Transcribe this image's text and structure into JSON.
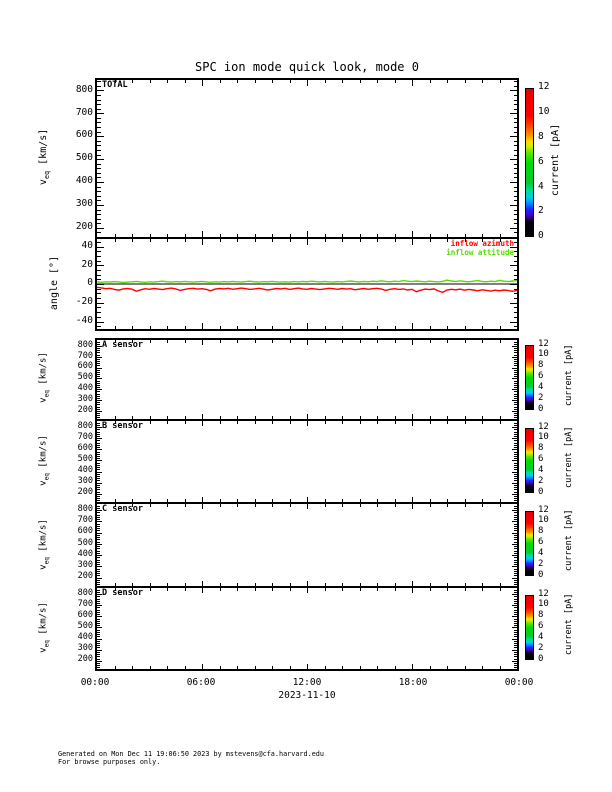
{
  "page": {
    "title": "SPC ion mode quick look, mode 0",
    "date_label": "2023-11-10",
    "footer_line1": "Generated on Mon Dec 11 19:06:50 2023 by mstevens@cfa.harvard.edu",
    "footer_line2": "For browse purposes only."
  },
  "labels": {
    "veq_base": "v",
    "veq_sub": "eq",
    "veq_units": " [km/s]",
    "angle": "angle [°]"
  },
  "x_axis": {
    "labels": [
      "00:00",
      "06:00",
      "12:00",
      "18:00",
      "00:00"
    ],
    "hours": 24,
    "major": [
      6,
      12,
      18
    ],
    "minor_step": 1
  },
  "colorbar": {
    "label": "current [pA]",
    "min": 0,
    "max": 12,
    "ticks": [
      0,
      2,
      4,
      6,
      8,
      10,
      12
    ],
    "stops": [
      {
        "p": 0.0,
        "c": "#000000"
      },
      {
        "p": 0.1,
        "c": "#0a0014"
      },
      {
        "p": 0.14,
        "c": "#4400c8"
      },
      {
        "p": 0.18,
        "c": "#2222ff"
      },
      {
        "p": 0.22,
        "c": "#0088ff"
      },
      {
        "p": 0.26,
        "c": "#00ccee"
      },
      {
        "p": 0.31,
        "c": "#00dd99"
      },
      {
        "p": 0.36,
        "c": "#00cc33"
      },
      {
        "p": 0.5,
        "c": "#00dd00"
      },
      {
        "p": 0.57,
        "c": "#66e600"
      },
      {
        "p": 0.61,
        "c": "#ccee00"
      },
      {
        "p": 0.64,
        "c": "#ffdd00"
      },
      {
        "p": 0.68,
        "c": "#ff9900"
      },
      {
        "p": 0.75,
        "c": "#ff4400"
      },
      {
        "p": 0.82,
        "c": "#ff0000"
      },
      {
        "p": 1.0,
        "c": "#e60000"
      }
    ]
  },
  "panels": [
    {
      "label": "TOTAL",
      "ylim": [
        160,
        845
      ],
      "yticks": [
        800,
        700,
        600,
        500,
        400,
        300,
        200
      ],
      "yminor": 20,
      "tick_fs": 9.5,
      "has_colorbar": true
    },
    {
      "label": "",
      "ylim": [
        -48,
        48
      ],
      "yticks": [
        40,
        20,
        0,
        -20,
        -40
      ],
      "yminor": 5,
      "tick_fs": 9.5,
      "zero_line": true
    },
    {
      "label": "A sensor",
      "ylim": [
        125,
        855
      ],
      "yticks": [
        800,
        700,
        600,
        500,
        400,
        300,
        200
      ],
      "yminor": 20,
      "tick_fs": 8.5,
      "has_colorbar": true
    },
    {
      "label": "B sensor",
      "ylim": [
        125,
        855
      ],
      "yticks": [
        800,
        700,
        600,
        500,
        400,
        300,
        200
      ],
      "yminor": 20,
      "tick_fs": 8.5,
      "has_colorbar": true
    },
    {
      "label": "C sensor",
      "ylim": [
        125,
        855
      ],
      "yticks": [
        800,
        700,
        600,
        500,
        400,
        300,
        200
      ],
      "yminor": 20,
      "tick_fs": 8.5,
      "has_colorbar": true
    },
    {
      "label": "D sensor",
      "ylim": [
        125,
        855
      ],
      "yticks": [
        800,
        700,
        600,
        500,
        400,
        300,
        200
      ],
      "yminor": 20,
      "tick_fs": 8.5,
      "has_colorbar": true
    }
  ],
  "angle_panel": {
    "legend": [
      {
        "label": "inflow azimuth",
        "color": "#ff0000"
      },
      {
        "label": "inflow attitude",
        "color": "#55dd00"
      }
    ]
  },
  "chart_data": [
    {
      "type": "heatmap",
      "panel": "TOTAL",
      "ylabel": "v_eq [km/s]",
      "ylim": [
        160,
        845
      ],
      "x_range_hours": [
        0,
        24
      ],
      "x_tick_labels": [
        "00:00",
        "06:00",
        "12:00",
        "18:00",
        "00:00"
      ],
      "colorbar": {
        "label": "current [pA]",
        "range": [
          0,
          12
        ]
      },
      "series": [],
      "note": "panel blank - no spectrogram data plotted"
    },
    {
      "type": "line",
      "panel": "angle",
      "ylabel": "angle [°]",
      "ylim": [
        -48,
        48
      ],
      "yticks": [
        -40,
        -20,
        0,
        20,
        40
      ],
      "x_start_hours": 0,
      "x_step_hours": 0.25,
      "zero_line": true,
      "legend_position": "top-right",
      "series": [
        {
          "name": "inflow azimuth",
          "color": "#ff0000",
          "values": [
            -3.5,
            -4.2,
            -5.0,
            -4.6,
            -5.8,
            -6.5,
            -5.2,
            -4.8,
            -5.5,
            -7.8,
            -6.2,
            -5.0,
            -5.6,
            -4.8,
            -5.4,
            -6.0,
            -5.0,
            -4.4,
            -5.2,
            -6.8,
            -5.8,
            -5.0,
            -4.6,
            -5.4,
            -5.0,
            -5.8,
            -7.2,
            -5.4,
            -4.8,
            -5.2,
            -4.6,
            -5.6,
            -5.0,
            -4.4,
            -5.0,
            -5.8,
            -5.2,
            -4.6,
            -5.4,
            -6.4,
            -5.6,
            -4.8,
            -5.2,
            -4.6,
            -5.8,
            -5.0,
            -4.4,
            -5.2,
            -5.6,
            -4.8,
            -5.4,
            -6.0,
            -5.2,
            -4.6,
            -5.0,
            -5.6,
            -4.8,
            -5.4,
            -5.0,
            -6.2,
            -5.4,
            -4.8,
            -5.6,
            -5.0,
            -4.6,
            -5.4,
            -6.8,
            -5.6,
            -5.0,
            -5.8,
            -5.2,
            -6.4,
            -5.6,
            -8.2,
            -6.6,
            -5.4,
            -6.0,
            -5.2,
            -7.4,
            -9.0,
            -6.4,
            -5.6,
            -6.2,
            -5.4,
            -6.6,
            -5.8,
            -6.4,
            -7.2,
            -6.2,
            -6.8,
            -7.6,
            -6.6,
            -7.2,
            -6.4,
            -7.0,
            -7.8,
            -6.8
          ]
        },
        {
          "name": "inflow attitude",
          "color": "#55dd00",
          "values": [
            2.2,
            1.8,
            2.4,
            2.0,
            2.6,
            2.2,
            1.6,
            2.0,
            2.4,
            2.8,
            2.2,
            1.8,
            2.4,
            2.0,
            2.6,
            3.0,
            2.4,
            2.0,
            2.6,
            2.2,
            2.8,
            2.4,
            2.0,
            2.4,
            2.8,
            2.2,
            1.8,
            2.4,
            2.0,
            2.6,
            2.2,
            2.8,
            2.4,
            2.0,
            2.6,
            3.0,
            2.4,
            2.0,
            2.6,
            2.2,
            2.8,
            2.4,
            2.0,
            2.4,
            2.0,
            2.6,
            2.2,
            2.8,
            2.4,
            3.0,
            2.6,
            2.2,
            2.8,
            2.4,
            2.0,
            2.6,
            2.2,
            2.8,
            3.2,
            2.6,
            2.2,
            2.8,
            2.4,
            3.0,
            2.6,
            3.4,
            2.8,
            2.4,
            3.0,
            2.6,
            3.6,
            3.0,
            2.6,
            3.2,
            2.8,
            2.4,
            3.0,
            2.6,
            2.2,
            2.8,
            4.2,
            3.2,
            2.6,
            3.4,
            2.8,
            2.4,
            3.0,
            3.6,
            2.8,
            2.4,
            3.0,
            2.6,
            3.8,
            3.0,
            2.6,
            3.2,
            3.6
          ]
        }
      ]
    },
    {
      "type": "heatmap",
      "panel": "A sensor",
      "ylabel": "v_eq [km/s]",
      "ylim": [
        125,
        855
      ],
      "x_range_hours": [
        0,
        24
      ],
      "colorbar": {
        "label": "current [pA]",
        "range": [
          0,
          12
        ]
      },
      "series": [],
      "note": "panel blank - no spectrogram data plotted"
    },
    {
      "type": "heatmap",
      "panel": "B sensor",
      "ylabel": "v_eq [km/s]",
      "ylim": [
        125,
        855
      ],
      "x_range_hours": [
        0,
        24
      ],
      "colorbar": {
        "label": "current [pA]",
        "range": [
          0,
          12
        ]
      },
      "series": [],
      "note": "panel blank - no spectrogram data plotted"
    },
    {
      "type": "heatmap",
      "panel": "C sensor",
      "ylabel": "v_eq [km/s]",
      "ylim": [
        125,
        855
      ],
      "x_range_hours": [
        0,
        24
      ],
      "colorbar": {
        "label": "current [pA]",
        "range": [
          0,
          12
        ]
      },
      "series": [],
      "note": "panel blank - no spectrogram data plotted"
    },
    {
      "type": "heatmap",
      "panel": "D sensor",
      "ylabel": "v_eq [km/s]",
      "ylim": [
        125,
        855
      ],
      "x_range_hours": [
        0,
        24
      ],
      "colorbar": {
        "label": "current [pA]",
        "range": [
          0,
          12
        ]
      },
      "series": [],
      "note": "panel blank - no spectrogram data plotted"
    }
  ]
}
